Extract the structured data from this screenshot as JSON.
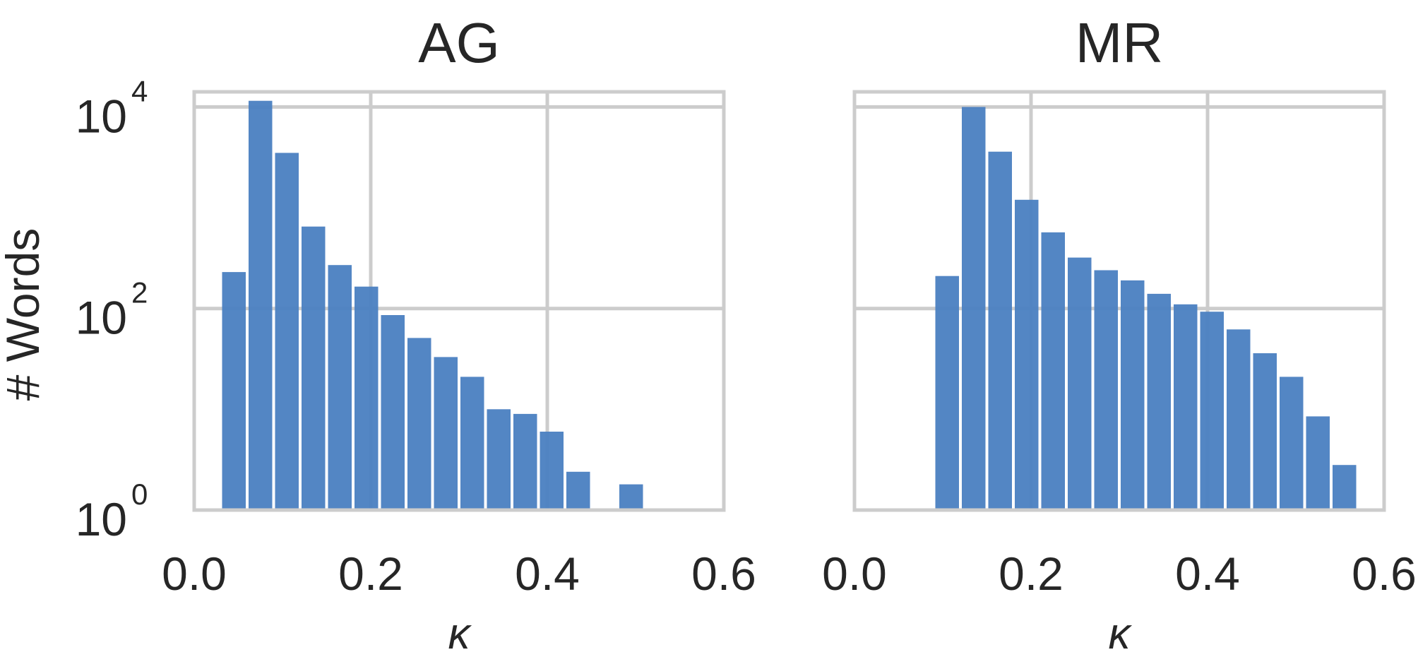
{
  "figure": {
    "ylabel": "# Words",
    "accent": "#4a7fc1",
    "grid_color": "#cccccc"
  },
  "chart_data": [
    {
      "type": "bar",
      "title": "AG",
      "xlabel": "κ",
      "ylabel": "# Words",
      "yscale": "log",
      "xlim": [
        0.0,
        0.6
      ],
      "ylim_exp": [
        0,
        4.15
      ],
      "xticks": [
        "0.0",
        "0.2",
        "0.4",
        "0.6"
      ],
      "yticks": [
        {
          "base": "10",
          "exp": "0"
        },
        {
          "base": "10",
          "exp": "2"
        },
        {
          "base": "10",
          "exp": "4"
        }
      ],
      "grid": true,
      "bin_width": 0.03,
      "bars": [
        {
          "x": 0.045,
          "value": 230
        },
        {
          "x": 0.075,
          "value": 11500
        },
        {
          "x": 0.105,
          "value": 3500
        },
        {
          "x": 0.135,
          "value": 650
        },
        {
          "x": 0.165,
          "value": 270
        },
        {
          "x": 0.195,
          "value": 165
        },
        {
          "x": 0.225,
          "value": 86
        },
        {
          "x": 0.255,
          "value": 51
        },
        {
          "x": 0.285,
          "value": 33
        },
        {
          "x": 0.315,
          "value": 21
        },
        {
          "x": 0.345,
          "value": 10
        },
        {
          "x": 0.375,
          "value": 9
        },
        {
          "x": 0.405,
          "value": 6
        },
        {
          "x": 0.435,
          "value": 2.4
        },
        {
          "x": 0.495,
          "value": 1.8
        }
      ]
    },
    {
      "type": "bar",
      "title": "MR",
      "xlabel": "κ",
      "ylabel": "",
      "yscale": "log",
      "xlim": [
        0.0,
        0.6
      ],
      "ylim_exp": [
        0,
        4.15
      ],
      "xticks": [
        "0.0",
        "0.2",
        "0.4",
        "0.6"
      ],
      "grid": true,
      "bin_width": 0.03,
      "bars": [
        {
          "x": 0.105,
          "value": 210
        },
        {
          "x": 0.135,
          "value": 10000
        },
        {
          "x": 0.165,
          "value": 3600
        },
        {
          "x": 0.195,
          "value": 1200
        },
        {
          "x": 0.225,
          "value": 570
        },
        {
          "x": 0.255,
          "value": 320
        },
        {
          "x": 0.285,
          "value": 240
        },
        {
          "x": 0.315,
          "value": 190
        },
        {
          "x": 0.345,
          "value": 140
        },
        {
          "x": 0.375,
          "value": 110
        },
        {
          "x": 0.405,
          "value": 93
        },
        {
          "x": 0.435,
          "value": 62
        },
        {
          "x": 0.465,
          "value": 36
        },
        {
          "x": 0.495,
          "value": 21
        },
        {
          "x": 0.525,
          "value": 8.5
        },
        {
          "x": 0.555,
          "value": 2.8
        }
      ]
    }
  ]
}
